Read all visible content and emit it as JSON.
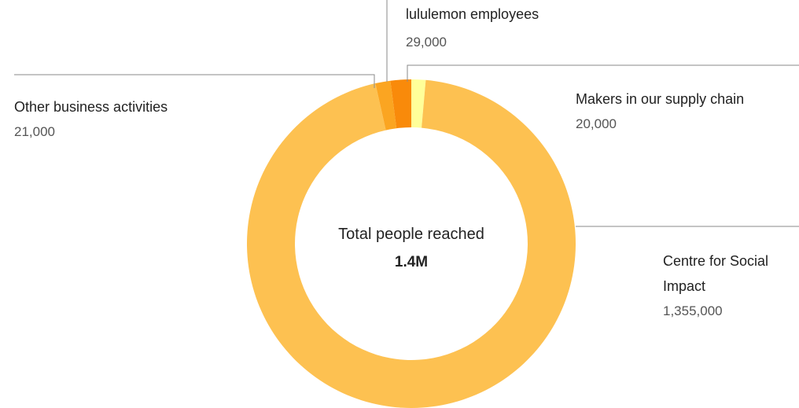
{
  "chart_data": {
    "type": "pie",
    "style": "donut",
    "center_label": "Total people reached",
    "center_value": "1.4M",
    "slices": [
      {
        "name": "Makers in our supply chain",
        "value": 20000,
        "value_label": "20,000",
        "color": "#FFFF99"
      },
      {
        "name": "Centre for Social Impact",
        "value": 1355000,
        "value_label": "1,355,000",
        "color": "#FDC151"
      },
      {
        "name": "Other business activities",
        "value": 21000,
        "value_label": "21,000",
        "color": "#FBA521"
      },
      {
        "name": "lululemon employees",
        "value": 29000,
        "value_label": "29,000",
        "color": "#F98A0A"
      }
    ]
  }
}
